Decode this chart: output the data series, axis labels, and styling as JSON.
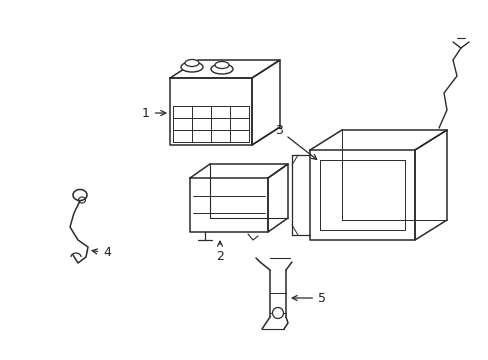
{
  "bg_color": "#ffffff",
  "line_color": "#2a2a2a",
  "line_width": 1.1,
  "figsize": [
    4.89,
    3.6
  ],
  "dpi": 100,
  "label_fontsize": 9,
  "label_color": "#222222"
}
